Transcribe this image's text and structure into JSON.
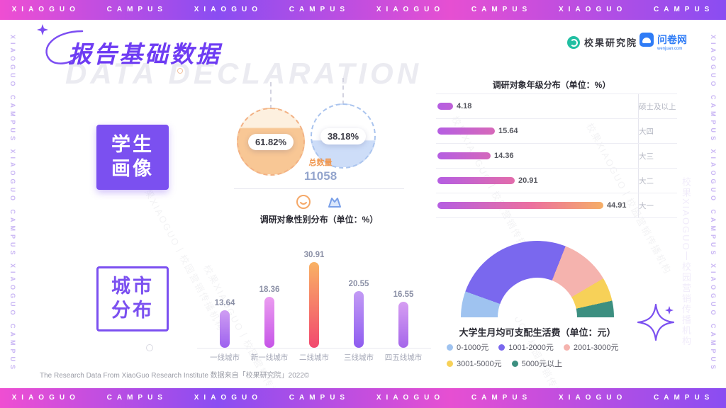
{
  "frame": {
    "banner_text": "XIAOGUO CAMPUS XIAOGUO CAMPUS XIAOGUO CAMPUS XIAOGUO CAMPUS",
    "side_text": "XIAOGUO CAMPUS XIAOGUO CAMPUS XIAOGUO CAMPUS",
    "watermark_text": "校果XIAOGUO丨校园营销传播机构"
  },
  "header": {
    "title": "报告基础数据",
    "subtitle_watermark": "DATA DECLARATION",
    "logos": {
      "research_institute": "校果研究院",
      "wenjuan": "问卷网",
      "wenjuan_sub": "wenjuan.com"
    }
  },
  "sections": {
    "student_portrait": {
      "line1": "学生",
      "line2": "画像"
    },
    "city_distribution": {
      "line1": "城市",
      "line2": "分布"
    }
  },
  "chart_data": [
    {
      "type": "pie",
      "name": "gender_distribution",
      "title": "调研对象性别分布（单位：%）",
      "slices": [
        {
          "label": "male",
          "display": "61.82%",
          "value": 61.82,
          "color": "#f8c795"
        },
        {
          "label": "female",
          "display": "38.18%",
          "value": 38.18,
          "color": "#cdddf8"
        }
      ],
      "total_label": "总数量",
      "total_value": "11058"
    },
    {
      "type": "bar",
      "name": "grade_distribution",
      "orientation": "horizontal",
      "title": "调研对象年级分布（单位：%）",
      "categories": [
        "硕士及以上",
        "大四",
        "大三",
        "大二",
        "大一"
      ],
      "values": [
        4.18,
        15.64,
        14.36,
        20.91,
        44.91
      ],
      "xlim": [
        0,
        50
      ],
      "bar_gradient": [
        "#b55ee2",
        "#ec6f9f",
        "#f6b263"
      ]
    },
    {
      "type": "bar",
      "name": "city_distribution",
      "orientation": "vertical",
      "categories": [
        "一线城市",
        "新一线城市",
        "二线城市",
        "三线城市",
        "四五线城市"
      ],
      "values": [
        13.64,
        18.36,
        30.91,
        20.55,
        16.55
      ],
      "ylim": [
        0,
        35
      ],
      "bar_gradients": [
        [
          "#cf9df2",
          "#9d62ef"
        ],
        [
          "#eb9df0",
          "#c655e8"
        ],
        [
          "#f9b264",
          "#f2486f"
        ],
        [
          "#c39bf5",
          "#8e5cf0"
        ],
        [
          "#d69ef2",
          "#a566ea"
        ]
      ]
    },
    {
      "type": "pie",
      "variant": "half-donut",
      "name": "monthly_disposable_expenses",
      "title": "大学生月均可支配生活费（单位：元）",
      "slices": [
        {
          "label": "0-1000元",
          "pct": 11,
          "color": "#9fc3f0"
        },
        {
          "label": "1001-2000元",
          "pct": 51,
          "color": "#7a68ee"
        },
        {
          "label": "2001-3000元",
          "pct": 21,
          "color": "#f5b3ae"
        },
        {
          "label": "3001-5000元",
          "pct": 10,
          "color": "#f7d158"
        },
        {
          "label": "5000元以上",
          "pct": 7,
          "color": "#3c8f80"
        }
      ]
    }
  ],
  "footer": {
    "note": "The Research Data From XiaoGuo Research Institute 数据来自「校果研究院」2022©"
  }
}
